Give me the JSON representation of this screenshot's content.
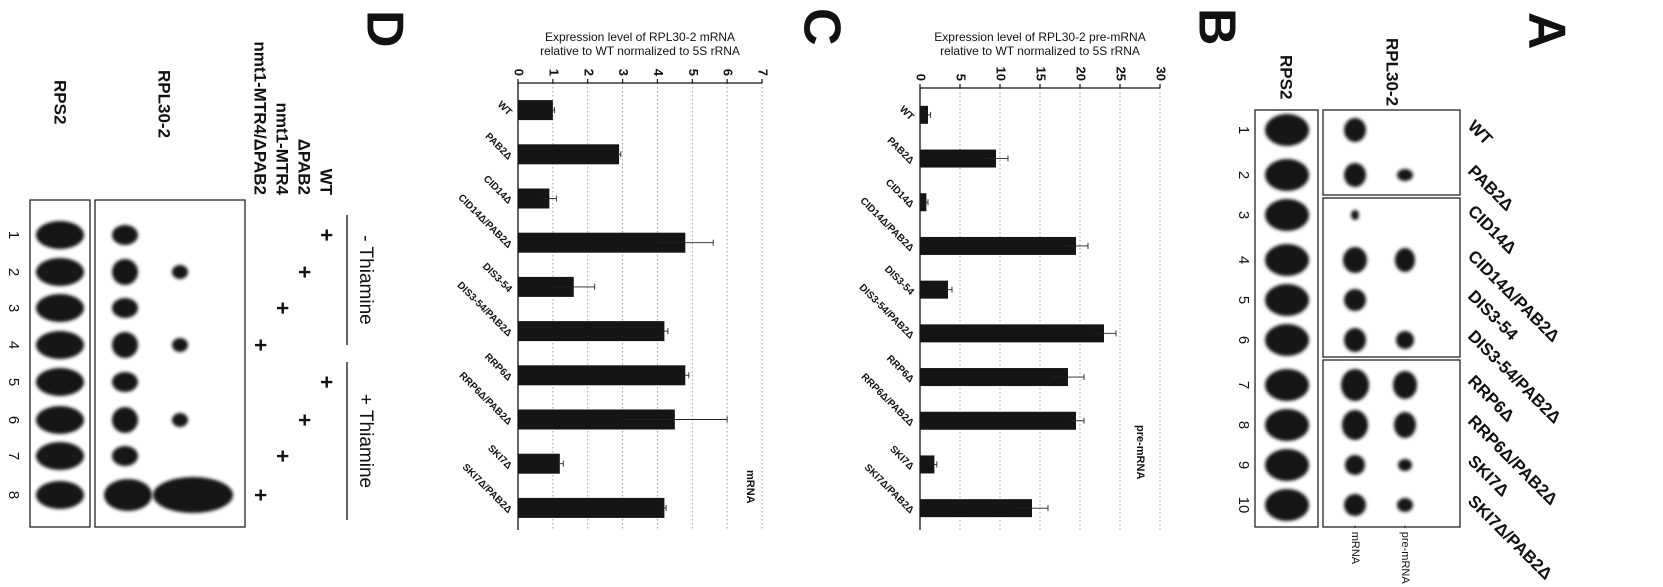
{
  "panel_a": {
    "panel_label": "A",
    "probes": [
      "RPL30-2",
      "RPS2"
    ],
    "strains": [
      "WT",
      "PAB2Δ",
      "CID14Δ",
      "CID14Δ/PAB2Δ",
      "DIS3-54",
      "DIS3-54/PAB2Δ",
      "RRP6Δ",
      "RRP6Δ/PAB2Δ",
      "SKI7Δ",
      "SKI7Δ/PAB2Δ"
    ],
    "lanes": [
      "1",
      "2",
      "3",
      "4",
      "5",
      "6",
      "7",
      "8",
      "9",
      "10"
    ],
    "bands": [
      "- mRNA",
      "- pre-mRNA"
    ]
  },
  "chart_data": [
    {
      "type": "bar",
      "panel_label": "B",
      "ylabel": [
        "Expression level of RPL30-2 pre-mRNA",
        "relative to WT normalized to 5S rRNA"
      ],
      "categories": [
        "WT",
        "PAB2Δ",
        "CID14Δ",
        "CID14Δ/PAB2Δ",
        "DIS3-54",
        "DIS3-54/PAB2Δ",
        "RRP6Δ",
        "RRP6Δ/PAB2Δ",
        "SKI7Δ",
        "SKI7Δ/PAB2Δ"
      ],
      "series": [
        {
          "name": "pre-mRNA",
          "color": "#151515",
          "values": [
            1,
            9.5,
            0.8,
            19.5,
            3.5,
            23,
            18.5,
            19.5,
            1.8,
            14
          ],
          "errors": [
            0.3,
            1.5,
            0.2,
            1.5,
            0.5,
            1.5,
            2,
            1,
            0.3,
            2
          ]
        }
      ],
      "ylim": [
        0,
        30
      ],
      "yticks": [
        0,
        5,
        10,
        15,
        20,
        25,
        30
      ],
      "grid": true
    },
    {
      "type": "bar",
      "panel_label": "C",
      "ylabel": [
        "Expression level of RPL30-2 mRNA",
        "relative to WT normalized to 5S rRNA"
      ],
      "categories": [
        "WT",
        "PAB2Δ",
        "CID14Δ",
        "CID14Δ/PAB2Δ",
        "DIS3-54",
        "DIS3-54/PAB2Δ",
        "RRP6Δ",
        "RRP6Δ/PAB2Δ",
        "SKI7Δ",
        "SKI7Δ/PAB2Δ"
      ],
      "series": [
        {
          "name": "mRNA",
          "color": "#151515",
          "values": [
            1,
            2.9,
            0.9,
            4.8,
            1.6,
            4.2,
            4.8,
            4.5,
            1.2,
            4.2
          ],
          "errors": [
            0.05,
            0.05,
            0.2,
            0.8,
            0.6,
            0.1,
            0.1,
            1.5,
            0.1,
            0.05
          ]
        }
      ],
      "ylim": [
        0,
        7
      ],
      "yticks": [
        0,
        1,
        2,
        3,
        4,
        5,
        6,
        7
      ],
      "grid": true
    }
  ],
  "panel_d": {
    "panel_label": "D",
    "conditions": [
      "- Thiamine",
      "+ Thiamine"
    ],
    "genotypes": [
      "WT",
      "ΔPAB2",
      "nmt1-MTR4",
      "nmt1-MTR4/ΔPAB2"
    ],
    "plus_signs": [
      "+",
      "+",
      "+",
      "+",
      "+",
      "+",
      "+",
      "+"
    ],
    "probes": [
      "RPL30-2",
      "RPS2"
    ],
    "lanes": [
      "1",
      "2",
      "3",
      "4",
      "5",
      "6",
      "7",
      "8"
    ]
  }
}
